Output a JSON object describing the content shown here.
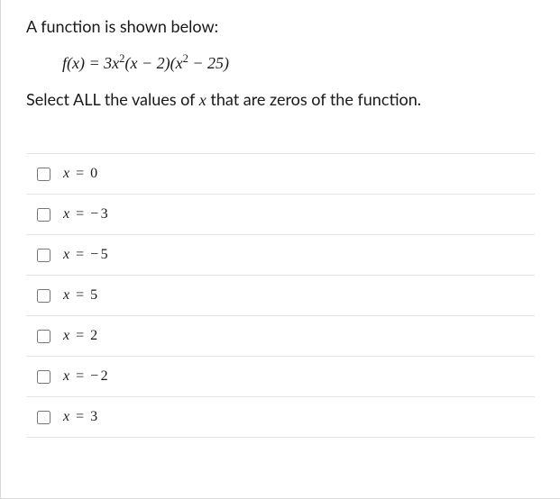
{
  "question": {
    "intro": "A function is shown below:",
    "equation_html": "<span class='func'>f</span>(<span class='func'>x</span>) = 3<span class='func'>x</span><sup>2</sup>(<span class='func'>x</span> − 2)(<span class='func'>x</span><sup>2</sup> − 25)",
    "prompt_prefix": "Select ALL the values of ",
    "prompt_var": "x",
    "prompt_suffix": " that are zeros of the function."
  },
  "options": [
    {
      "html": "x <span class='eq'>=</span> <span class='num'>0</span>"
    },
    {
      "html": "x <span class='eq'>=</span> <span class='neg'>−</span><span class='num'>3</span>"
    },
    {
      "html": "x <span class='eq'>=</span> <span class='neg'>−</span><span class='num'>5</span>"
    },
    {
      "html": "x <span class='eq'>=</span> <span class='num'>5</span>"
    },
    {
      "html": "x <span class='eq'>=</span> <span class='num'>2</span>"
    },
    {
      "html": "x <span class='eq'>=</span> <span class='neg'>−</span><span class='num'>2</span>"
    },
    {
      "html": "x <span class='eq'>=</span> <span class='num'>3</span>"
    }
  ],
  "styling": {
    "body_width": 621,
    "body_height": 554,
    "text_color": "#1a1a1a",
    "border_color": "#e5e5e5",
    "outer_border_color": "#d8d8d8",
    "background": "#ffffff",
    "intro_fontsize": 18,
    "option_fontsize": 16,
    "checkbox_size": 15
  }
}
